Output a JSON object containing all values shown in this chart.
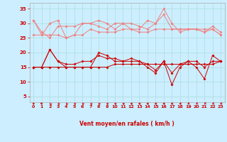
{
  "x": [
    0,
    1,
    2,
    3,
    4,
    5,
    6,
    7,
    8,
    9,
    10,
    11,
    12,
    13,
    14,
    15,
    16,
    17,
    18,
    19,
    20,
    21,
    22,
    23
  ],
  "series_light": [
    [
      31,
      26,
      30,
      31,
      25,
      26,
      30,
      30,
      31,
      30,
      28,
      30,
      28,
      28,
      31,
      30,
      35,
      30,
      27,
      28,
      28,
      27,
      28,
      26
    ],
    [
      31,
      27,
      25,
      29,
      29,
      29,
      30,
      30,
      29,
      28,
      30,
      30,
      30,
      29,
      28,
      30,
      33,
      28,
      28,
      28,
      28,
      27,
      29,
      27
    ],
    [
      26,
      26,
      26,
      26,
      25,
      26,
      26,
      28,
      27,
      27,
      27,
      28,
      28,
      27,
      27,
      28,
      28,
      28,
      28,
      28,
      28,
      28,
      28,
      26
    ]
  ],
  "series_dark": [
    [
      15,
      15,
      21,
      17,
      15,
      15,
      15,
      15,
      20,
      19,
      17,
      17,
      17,
      17,
      15,
      13,
      17,
      9,
      15,
      17,
      15,
      11,
      19,
      17
    ],
    [
      15,
      15,
      21,
      17,
      16,
      16,
      17,
      17,
      19,
      18,
      18,
      17,
      18,
      17,
      16,
      14,
      17,
      13,
      16,
      17,
      17,
      15,
      17,
      17
    ],
    [
      15,
      15,
      15,
      15,
      15,
      15,
      15,
      15,
      15,
      15,
      16,
      16,
      16,
      16,
      16,
      16,
      16,
      16,
      16,
      16,
      16,
      16,
      16,
      17
    ]
  ],
  "light_color": "#f08080",
  "dark_color": "#cc0000",
  "bg_color": "#cceeff",
  "grid_color": "#aadddd",
  "axis_color": "#cc0000",
  "xlabel": "Vent moyen/en rafales ( km/h )",
  "ylim": [
    3,
    37
  ],
  "yticks": [
    5,
    10,
    15,
    20,
    25,
    30,
    35
  ],
  "xlim": [
    -0.5,
    23.5
  ],
  "xticks": [
    0,
    1,
    2,
    3,
    4,
    5,
    6,
    7,
    8,
    9,
    10,
    11,
    12,
    13,
    14,
    15,
    16,
    17,
    18,
    19,
    20,
    21,
    22,
    23
  ],
  "arrow_angles": [
    200,
    210,
    220,
    225,
    225,
    230,
    230,
    225,
    230,
    230,
    240,
    240,
    250,
    255,
    260,
    265,
    270,
    270,
    290,
    300,
    310,
    315,
    310,
    300
  ]
}
